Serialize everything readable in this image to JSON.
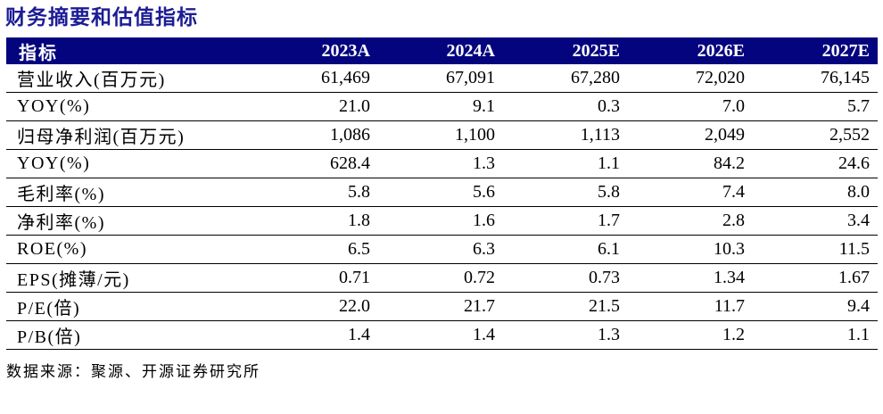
{
  "title": "财务摘要和估值指标",
  "colors": {
    "header_bg": "#04047F",
    "title_text": "#1C1C96",
    "header_text": "#FFFFFF",
    "body_text": "#000000",
    "row_divider": "#000000"
  },
  "table": {
    "columns": [
      "指标",
      "2023A",
      "2024A",
      "2025E",
      "2026E",
      "2027E"
    ],
    "rows": [
      {
        "label": "营业收入(百万元)",
        "values": [
          "61,469",
          "67,091",
          "67,280",
          "72,020",
          "76,145"
        ]
      },
      {
        "label": "YOY(%)",
        "values": [
          "21.0",
          "9.1",
          "0.3",
          "7.0",
          "5.7"
        ]
      },
      {
        "label": "归母净利润(百万元)",
        "values": [
          "1,086",
          "1,100",
          "1,113",
          "2,049",
          "2,552"
        ]
      },
      {
        "label": "YOY(%)",
        "values": [
          "628.4",
          "1.3",
          "1.1",
          "84.2",
          "24.6"
        ]
      },
      {
        "label": "毛利率(%)",
        "values": [
          "5.8",
          "5.6",
          "5.8",
          "7.4",
          "8.0"
        ]
      },
      {
        "label": "净利率(%)",
        "values": [
          "1.8",
          "1.6",
          "1.7",
          "2.8",
          "3.4"
        ]
      },
      {
        "label": "ROE(%)",
        "values": [
          "6.5",
          "6.3",
          "6.1",
          "10.3",
          "11.5"
        ]
      },
      {
        "label": "EPS(摊薄/元)",
        "values": [
          "0.71",
          "0.72",
          "0.73",
          "1.34",
          "1.67"
        ]
      },
      {
        "label": "P/E(倍)",
        "values": [
          "22.0",
          "21.7",
          "21.5",
          "11.7",
          "9.4"
        ]
      },
      {
        "label": "P/B(倍)",
        "values": [
          "1.4",
          "1.4",
          "1.3",
          "1.2",
          "1.1"
        ]
      }
    ]
  },
  "footer": {
    "source_note": "数据来源：聚源、开源证券研究所"
  }
}
